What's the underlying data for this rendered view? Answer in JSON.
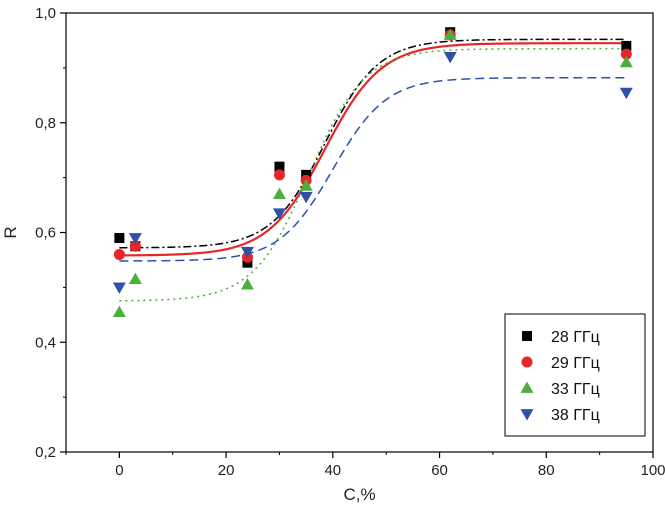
{
  "chart_data": {
    "type": "scatter",
    "title": "",
    "xlabel": "C,%",
    "ylabel": "R",
    "xlim": [
      -10,
      100
    ],
    "ylim": [
      0.2,
      1.0
    ],
    "xticks": [
      0,
      20,
      40,
      60,
      80,
      100
    ],
    "yticks": [
      0.2,
      0.4,
      0.6,
      0.8,
      1.0
    ],
    "xtick_labels": [
      "0",
      "20",
      "40",
      "60",
      "80",
      "100"
    ],
    "ytick_labels": [
      "0,2",
      "0,4",
      "0,6",
      "0,8",
      "1,0"
    ],
    "grid": false,
    "legend_position": "bottom-right",
    "x": [
      0,
      3,
      24,
      30,
      35,
      62,
      95
    ],
    "series": [
      {
        "name": "28 ГГц",
        "color": "#000000",
        "marker": "square",
        "values": [
          0.59,
          0.575,
          0.545,
          0.72,
          0.705,
          0.965,
          0.94
        ],
        "fit": {
          "bottom": 0.572,
          "top": 0.952,
          "x0": 38.5,
          "width": 5.0,
          "style": "dashdot",
          "color": "#000000"
        }
      },
      {
        "name": "29 ГГц",
        "color": "#e8262a",
        "marker": "circle",
        "values": [
          0.56,
          0.575,
          0.555,
          0.705,
          0.695,
          0.96,
          0.925
        ],
        "fit": {
          "bottom": 0.558,
          "top": 0.945,
          "x0": 38.5,
          "width": 5.3,
          "style": "solid",
          "color": "#e8262a"
        }
      },
      {
        "name": "33 ГГц",
        "color": "#4caf3b",
        "marker": "triangle-up",
        "values": [
          0.455,
          0.515,
          0.505,
          0.67,
          0.685,
          0.96,
          0.91
        ],
        "fit": {
          "bottom": 0.475,
          "top": 0.935,
          "x0": 35.5,
          "width": 5.2,
          "style": "dotted",
          "color": "#4caf3b"
        }
      },
      {
        "name": "38 ГГц",
        "color": "#2f52a8",
        "marker": "triangle-down",
        "values": [
          0.5,
          0.59,
          0.565,
          0.635,
          0.665,
          0.92,
          0.855
        ],
        "fit": {
          "bottom": 0.548,
          "top": 0.882,
          "x0": 40.0,
          "width": 5.0,
          "style": "dashed",
          "color": "#2f52a8"
        }
      }
    ]
  }
}
